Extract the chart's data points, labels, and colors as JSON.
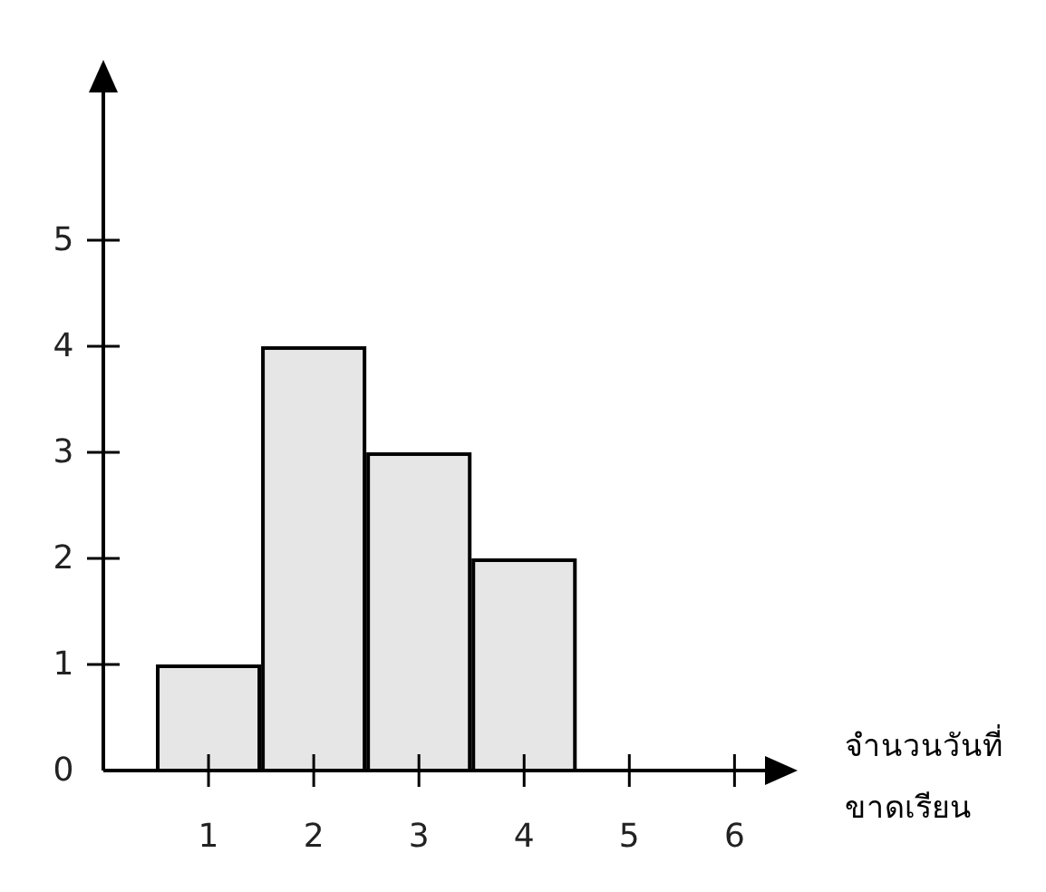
{
  "chart_data": {
    "type": "bar",
    "xlabel": "จำนวนวันที่ขาดเรียน",
    "x": [
      1,
      2,
      3,
      4
    ],
    "values": [
      1,
      4,
      3,
      2
    ],
    "color": "#e6e6e6",
    "xlim": [
      0,
      6.6
    ],
    "ylim": [
      0,
      6.7
    ],
    "xticks": [
      1,
      2,
      3,
      4,
      5,
      6
    ],
    "yticks": [
      0,
      1,
      2,
      3,
      4,
      5
    ]
  }
}
